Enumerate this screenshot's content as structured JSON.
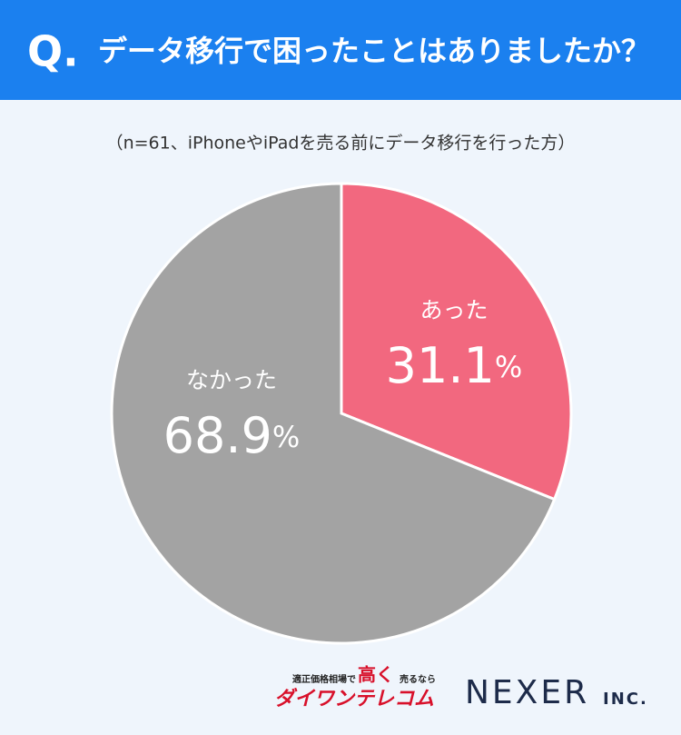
{
  "header": {
    "q": "Q.",
    "title": "データ移行で困ったことはありましたか？"
  },
  "chart_data": {
    "type": "pie",
    "subtitle": "（n=61、iPhoneやiPadを売る前にデータ移行を行った方）",
    "categories": [
      "あった",
      "なかった"
    ],
    "values": [
      31.1,
      68.9
    ],
    "value_labels": [
      "31.1%",
      "68.9%"
    ],
    "colors": [
      "#f2687f",
      "#a3a3a3"
    ]
  },
  "footer": {
    "tagline": "適正価格相場で",
    "emphasis": "高く",
    "tagline2": "売るなら",
    "brand": "ダイワンテレコム",
    "company": "NEXER",
    "suffix": "INC."
  }
}
